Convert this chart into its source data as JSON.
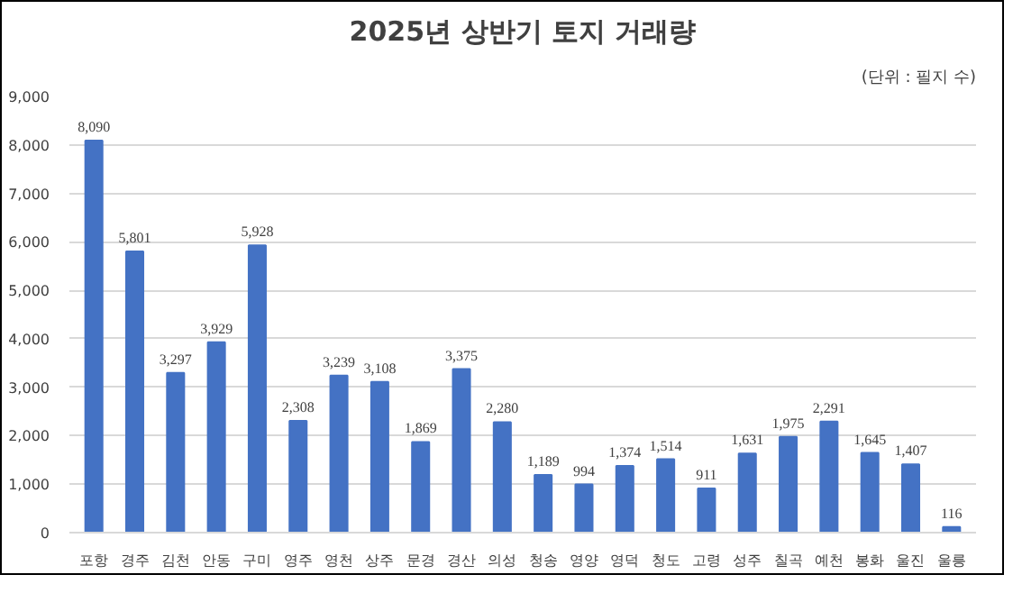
{
  "chart_data": {
    "type": "bar",
    "title": "2025년 상반기 토지 거래량",
    "annotations": [
      "(단위 : 필지 수)"
    ],
    "categories": [
      "포항",
      "경주",
      "김천",
      "안동",
      "구미",
      "영주",
      "영천",
      "상주",
      "문경",
      "경산",
      "의성",
      "청송",
      "영양",
      "영덕",
      "청도",
      "고령",
      "성주",
      "칠곡",
      "예천",
      "봉화",
      "울진",
      "울릉"
    ],
    "values": [
      8090,
      5801,
      3297,
      3929,
      5928,
      2308,
      3239,
      3108,
      1869,
      3375,
      2280,
      1189,
      994,
      1374,
      1514,
      911,
      1631,
      1975,
      2291,
      1645,
      1407,
      116
    ],
    "value_labels": [
      "8,090",
      "5,801",
      "3,297",
      "3,929",
      "5,928",
      "2,308",
      "3,239",
      "3,108",
      "1,869",
      "3,375",
      "2,280",
      "1,189",
      "994",
      "1,374",
      "1,514",
      "911",
      "1,631",
      "1,975",
      "2,291",
      "1,645",
      "1,407",
      "116"
    ],
    "color": "#4472c4",
    "ylim": [
      0,
      9000
    ],
    "yticks": [
      {
        "value": 0,
        "label": "0"
      },
      {
        "value": 1000,
        "label": "1,000"
      },
      {
        "value": 2000,
        "label": "2,000"
      },
      {
        "value": 3000,
        "label": "3,000"
      },
      {
        "value": 4000,
        "label": "4,000"
      },
      {
        "value": 5000,
        "label": "5,000"
      },
      {
        "value": 6000,
        "label": "6,000"
      },
      {
        "value": 7000,
        "label": "7,000"
      },
      {
        "value": 8000,
        "label": "8,000"
      },
      {
        "value": 9000,
        "label": "9,000"
      }
    ],
    "grid": "y"
  }
}
